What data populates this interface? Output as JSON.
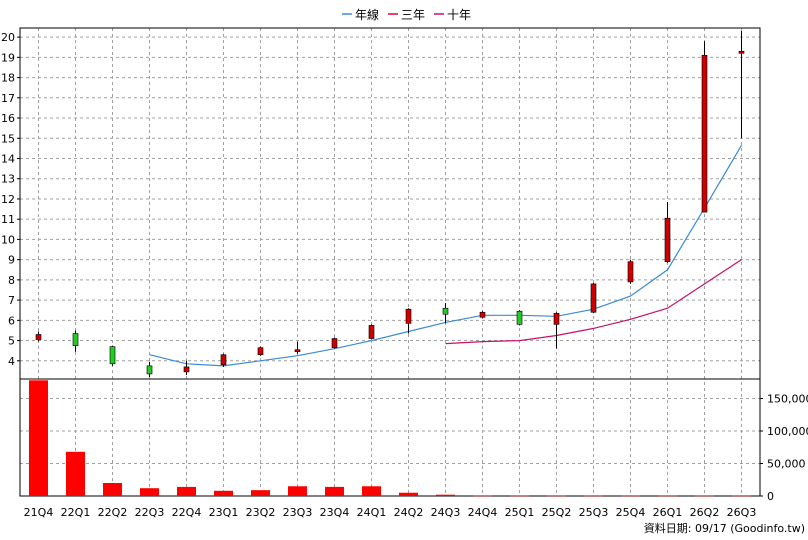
{
  "chart_data": {
    "type": "candlestick",
    "categories": [
      "21Q4",
      "22Q1",
      "22Q2",
      "22Q3",
      "22Q4",
      "23Q1",
      "23Q2",
      "23Q3",
      "23Q4",
      "24Q1",
      "24Q2",
      "24Q3",
      "24Q4",
      "25Q1",
      "25Q2",
      "25Q3",
      "25Q4",
      "26Q1",
      "26Q2",
      "26Q3"
    ],
    "candles": [
      {
        "open": 5.05,
        "close": 5.3,
        "high": 5.45,
        "low": 4.95
      },
      {
        "open": 5.35,
        "close": 4.75,
        "high": 5.5,
        "low": 4.45
      },
      {
        "open": 4.7,
        "close": 3.85,
        "high": 4.75,
        "low": 3.75
      },
      {
        "open": 3.75,
        "close": 3.35,
        "high": 3.95,
        "low": 3.2
      },
      {
        "open": 3.45,
        "close": 3.7,
        "high": 4.0,
        "low": 3.3
      },
      {
        "open": 3.8,
        "close": 4.3,
        "high": 4.35,
        "low": 3.7
      },
      {
        "open": 4.3,
        "close": 4.65,
        "high": 4.7,
        "low": 4.25
      },
      {
        "open": 4.45,
        "close": 4.55,
        "high": 4.95,
        "low": 4.35
      },
      {
        "open": 4.65,
        "close": 5.1,
        "high": 5.15,
        "low": 4.6
      },
      {
        "open": 5.1,
        "close": 5.75,
        "high": 5.8,
        "low": 5.05
      },
      {
        "open": 5.85,
        "close": 6.55,
        "high": 6.6,
        "low": 5.35
      },
      {
        "open": 6.6,
        "close": 6.3,
        "high": 6.85,
        "low": 5.85
      },
      {
        "open": 6.15,
        "close": 6.4,
        "high": 6.45,
        "low": 6.1
      },
      {
        "open": 6.45,
        "close": 5.8,
        "high": 6.5,
        "low": 5.75
      },
      {
        "open": 5.8,
        "close": 6.35,
        "high": 6.4,
        "low": 4.6
      },
      {
        "open": 6.4,
        "close": 7.8,
        "high": 7.85,
        "low": 6.35
      },
      {
        "open": 7.9,
        "close": 8.9,
        "high": 9.0,
        "low": 7.8
      },
      {
        "open": 8.9,
        "close": 11.05,
        "high": 11.85,
        "low": 8.85
      },
      {
        "open": 11.35,
        "close": 19.1,
        "high": 19.8,
        "low": 11.35
      },
      {
        "open": 19.2,
        "close": 19.3,
        "high": 20.3,
        "low": 15.0
      }
    ],
    "moving_averages": [
      {
        "name": "年線",
        "color": "#3a8ad8",
        "values": [
          null,
          null,
          null,
          4.3,
          3.85,
          3.75,
          4.0,
          4.25,
          4.6,
          5.0,
          5.45,
          5.9,
          6.25,
          6.25,
          6.2,
          6.55,
          7.2,
          8.5,
          11.55,
          14.65
        ]
      },
      {
        "name": "三年",
        "color": "#e0003a",
        "values": null
      },
      {
        "name": "十年",
        "color": "#c8106a",
        "values": [
          null,
          null,
          null,
          null,
          null,
          null,
          null,
          null,
          null,
          null,
          null,
          4.85,
          4.95,
          5.0,
          5.25,
          5.6,
          6.05,
          6.6,
          7.8,
          9.0
        ]
      }
    ],
    "volume": [
      178000,
      68000,
      20000,
      12000,
      14000,
      8000,
      9000,
      15000,
      14000,
      15000,
      5000,
      2000,
      400,
      400,
      400,
      400,
      400,
      400,
      400,
      400
    ],
    "price_axis": {
      "ticks": [
        4,
        5,
        6,
        7,
        8,
        9,
        10,
        11,
        12,
        13,
        14,
        15,
        16,
        17,
        18,
        19,
        20
      ],
      "range": [
        3.1,
        20.45
      ]
    },
    "volume_axis": {
      "ticks": [
        0,
        50000,
        100000,
        150000
      ],
      "labels": [
        "0",
        "50,000",
        "100,000",
        "150,000"
      ],
      "max": 180000
    },
    "colors": {
      "up": "#cc0000",
      "down": "#22cc22",
      "volume": "#ff0000",
      "grid": "#a0a0a0"
    },
    "grid": true,
    "legend_position": "top-center"
  },
  "source_note": "資料日期: 09/17 (Goodinfo.tw)"
}
